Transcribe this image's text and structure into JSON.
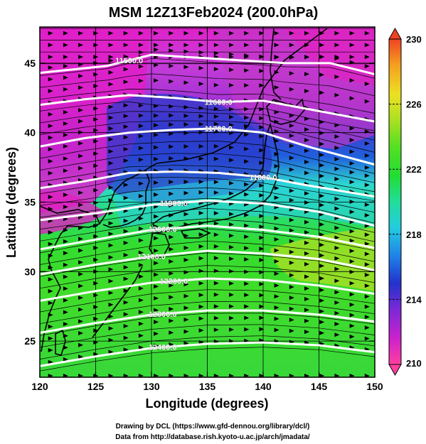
{
  "figure": {
    "title": "MSM 12Z13Feb2024 (200.0hPa)",
    "xlabel": "Longitude (degrees)",
    "ylabel": "Latitude  (degrees)",
    "footer_line1": "Drawing by DCL (https://www.gfd-dennou.org/library/dcl/)",
    "footer_line2": "Data from http://database.rish.kyoto-u.ac.jp/arch/jmadata/"
  },
  "map": {
    "xlim": [
      120,
      150
    ],
    "ylim": [
      22.4,
      47.6
    ],
    "x_ticks": [
      120,
      125,
      130,
      135,
      140,
      145,
      150
    ],
    "y_ticks": [
      25,
      30,
      35,
      40,
      45
    ],
    "x_tick_labels": [
      "120",
      "125",
      "130",
      "135",
      "140",
      "145",
      "150"
    ],
    "y_tick_labels": [
      "25",
      "30",
      "35",
      "40",
      "45"
    ],
    "grid": true
  },
  "colorbar": {
    "min": 210,
    "max": 230,
    "tick_values": [
      210,
      214,
      218,
      222,
      226,
      230
    ],
    "tick_labels": [
      "210",
      "214",
      "218",
      "222",
      "226",
      "230"
    ],
    "colors": [
      "#ff3fa0",
      "#cc22cc",
      "#7a28d8",
      "#2233cc",
      "#1f7fe8",
      "#22cce0",
      "#22dd99",
      "#22dd33",
      "#55e022",
      "#aae022",
      "#ece022",
      "#f5a020",
      "#ee4422"
    ]
  },
  "contours": [
    {
      "label": "11500.0",
      "lat_at_lon": [
        [
          120,
          44.3
        ],
        [
          126,
          44.8
        ],
        [
          130,
          45.6
        ],
        [
          136,
          45.3
        ],
        [
          142,
          45.0
        ],
        [
          146,
          45.0
        ],
        [
          150,
          44.2
        ]
      ]
    },
    {
      "label": "11600.0",
      "lat_at_lon": [
        [
          120,
          42.0
        ],
        [
          124,
          42.4
        ],
        [
          128,
          42.7
        ],
        [
          132,
          42.5
        ],
        [
          136,
          42.2
        ],
        [
          140,
          42.3
        ],
        [
          144,
          41.7
        ],
        [
          150,
          40.8
        ]
      ]
    },
    {
      "label": "11700.0",
      "lat_at_lon": [
        [
          120,
          39.0
        ],
        [
          124,
          39.6
        ],
        [
          128,
          40.0
        ],
        [
          132,
          40.2
        ],
        [
          136,
          40.3
        ],
        [
          140,
          40.0
        ],
        [
          144,
          39.0
        ],
        [
          150,
          37.7
        ]
      ]
    },
    {
      "label": "11800.0",
      "lat_at_lon": [
        [
          120,
          36.0
        ],
        [
          124,
          36.5
        ],
        [
          128,
          37.1
        ],
        [
          132,
          37.2
        ],
        [
          136,
          37.1
        ],
        [
          140,
          36.8
        ],
        [
          144,
          36.2
        ],
        [
          150,
          35.4
        ]
      ]
    },
    {
      "label": "11900.0",
      "lat_at_lon": [
        [
          120,
          33.7
        ],
        [
          125,
          34.2
        ],
        [
          130,
          34.8
        ],
        [
          135,
          35.1
        ],
        [
          140,
          34.9
        ],
        [
          145,
          34.3
        ],
        [
          150,
          33.3
        ]
      ]
    },
    {
      "label": "12000.0",
      "lat_at_lon": [
        [
          120,
          31.6
        ],
        [
          125,
          32.3
        ],
        [
          130,
          33.0
        ],
        [
          135,
          33.3
        ],
        [
          140,
          33.0
        ],
        [
          145,
          32.5
        ],
        [
          150,
          31.7
        ]
      ]
    },
    {
      "label": "12100.0",
      "lat_at_lon": [
        [
          120,
          29.8
        ],
        [
          125,
          30.5
        ],
        [
          130,
          31.1
        ],
        [
          135,
          31.5
        ],
        [
          140,
          31.3
        ],
        [
          145,
          30.9
        ],
        [
          150,
          30.1
        ]
      ]
    },
    {
      "label": "12200.0",
      "lat_at_lon": [
        [
          120,
          27.9
        ],
        [
          125,
          28.6
        ],
        [
          130,
          29.2
        ],
        [
          135,
          29.5
        ],
        [
          140,
          29.4
        ],
        [
          145,
          29.0
        ],
        [
          150,
          28.4
        ]
      ]
    },
    {
      "label": "12300.0",
      "lat_at_lon": [
        [
          120,
          25.6
        ],
        [
          125,
          26.3
        ],
        [
          130,
          26.9
        ],
        [
          135,
          27.2
        ],
        [
          140,
          27.2
        ],
        [
          145,
          26.9
        ],
        [
          150,
          26.4
        ]
      ]
    },
    {
      "label": "12400.0",
      "lat_at_lon": [
        [
          120,
          23.2
        ],
        [
          125,
          23.9
        ],
        [
          130,
          24.5
        ],
        [
          135,
          24.8
        ],
        [
          140,
          24.9
        ],
        [
          145,
          24.7
        ],
        [
          150,
          24.2
        ]
      ]
    }
  ]
}
